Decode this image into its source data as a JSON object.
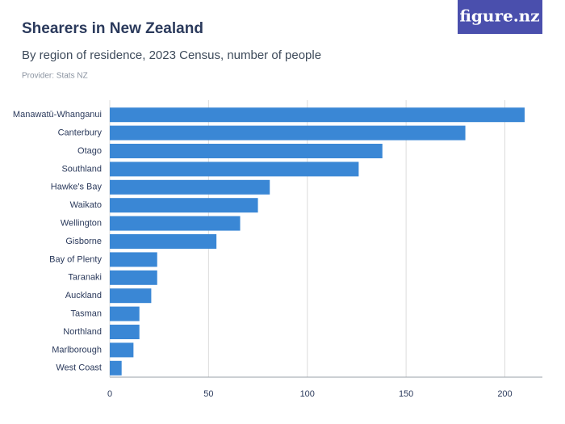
{
  "brand": "figure.nz",
  "chart_data": {
    "type": "barh",
    "title": "Shearers in New Zealand",
    "subtitle": "By region of residence, 2023 Census, number of people",
    "source": "Provider: Stats NZ",
    "categories": [
      "Manawatū-Whanganui",
      "Canterbury",
      "Otago",
      "Southland",
      "Hawke's Bay",
      "Waikato",
      "Wellington",
      "Gisborne",
      "Bay of Plenty",
      "Taranaki",
      "Auckland",
      "Tasman",
      "Northland",
      "Marlborough",
      "West Coast"
    ],
    "values": [
      210,
      180,
      138,
      126,
      81,
      75,
      66,
      54,
      24,
      24,
      21,
      15,
      15,
      12,
      6
    ],
    "color": "#3a87d5",
    "xlim": [
      0,
      219
    ],
    "xticks": [
      0,
      50,
      100,
      150,
      200
    ],
    "grid": true
  }
}
